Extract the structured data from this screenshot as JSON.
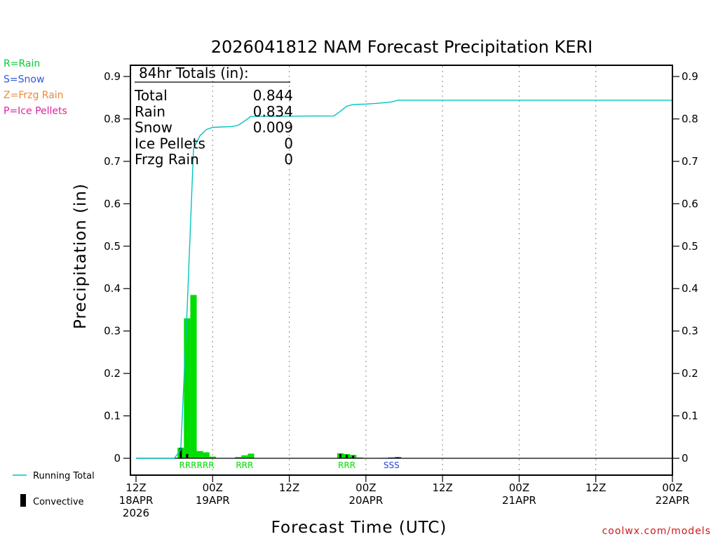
{
  "chart_data": {
    "type": "bar",
    "title": "2026041812 NAM Forecast Precipitation KERI",
    "xlabel": "Forecast Time (UTC)",
    "ylabel": "Precipitation (in)",
    "ylim": [
      0,
      0.9
    ],
    "yticks": [
      0,
      0.1,
      0.2,
      0.3,
      0.4,
      0.5,
      0.6,
      0.7,
      0.8,
      0.9
    ],
    "ytick_labels": [
      "0",
      "0.1",
      "0.2",
      "0.3",
      "0.4",
      "0.5",
      "0.6",
      "0.7",
      "0.8",
      "0.9"
    ],
    "xlim_hours": [
      0,
      84
    ],
    "xticks": [
      {
        "hour": 0,
        "lines": [
          "12Z",
          "18APR",
          "2026"
        ]
      },
      {
        "hour": 12,
        "lines": [
          "00Z",
          "19APR"
        ]
      },
      {
        "hour": 24,
        "lines": [
          "12Z"
        ]
      },
      {
        "hour": 36,
        "lines": [
          "00Z",
          "20APR"
        ]
      },
      {
        "hour": 48,
        "lines": [
          "12Z"
        ]
      },
      {
        "hour": 60,
        "lines": [
          "00Z",
          "21APR"
        ]
      },
      {
        "hour": 72,
        "lines": [
          "12Z"
        ]
      },
      {
        "hour": 84,
        "lines": [
          "00Z",
          "22APR"
        ]
      }
    ],
    "grid": "vertical-dotted",
    "series": [
      {
        "name": "Rain",
        "color": "#00dd00",
        "points": [
          {
            "h": 7,
            "v": 0.025
          },
          {
            "h": 8,
            "v": 0.33
          },
          {
            "h": 9,
            "v": 0.385
          },
          {
            "h": 10,
            "v": 0.017
          },
          {
            "h": 11,
            "v": 0.014
          },
          {
            "h": 12,
            "v": 0.004
          },
          {
            "h": 16,
            "v": 0.003
          },
          {
            "h": 17,
            "v": 0.007
          },
          {
            "h": 18,
            "v": 0.011
          },
          {
            "h": 32,
            "v": 0.012
          },
          {
            "h": 33,
            "v": 0.01
          },
          {
            "h": 34,
            "v": 0.008
          },
          {
            "h": 35,
            "v": 0.002
          }
        ]
      },
      {
        "name": "Snow",
        "color": "#2244dd",
        "points": [
          {
            "h": 39,
            "v": 0.001
          },
          {
            "h": 40,
            "v": 0.002
          },
          {
            "h": 41,
            "v": 0.003
          }
        ]
      },
      {
        "name": "Convective",
        "color": "#000000",
        "points": [
          {
            "h": 7,
            "v": 0.025
          },
          {
            "h": 8,
            "v": 0.01
          },
          {
            "h": 32,
            "v": 0.01
          },
          {
            "h": 33,
            "v": 0.008
          },
          {
            "h": 34,
            "v": 0.006
          },
          {
            "h": 41,
            "v": 0.002
          }
        ]
      },
      {
        "name": "Running Total",
        "type": "line",
        "color": "#00c4c4",
        "points": [
          {
            "h": 0,
            "v": 0
          },
          {
            "h": 6,
            "v": 0
          },
          {
            "h": 7,
            "v": 0.02
          },
          {
            "h": 8,
            "v": 0.35
          },
          {
            "h": 9,
            "v": 0.73
          },
          {
            "h": 10,
            "v": 0.76
          },
          {
            "h": 11,
            "v": 0.775
          },
          {
            "h": 12,
            "v": 0.78
          },
          {
            "h": 15,
            "v": 0.782
          },
          {
            "h": 16,
            "v": 0.785
          },
          {
            "h": 17,
            "v": 0.795
          },
          {
            "h": 18,
            "v": 0.806
          },
          {
            "h": 31,
            "v": 0.807
          },
          {
            "h": 32,
            "v": 0.818
          },
          {
            "h": 33,
            "v": 0.83
          },
          {
            "h": 34,
            "v": 0.834
          },
          {
            "h": 36,
            "v": 0.835
          },
          {
            "h": 38,
            "v": 0.837
          },
          {
            "h": 40,
            "v": 0.84
          },
          {
            "h": 41,
            "v": 0.844
          },
          {
            "h": 84,
            "v": 0.844
          }
        ]
      }
    ],
    "type_codes": [
      {
        "hour_start": 7,
        "hour_end": 12,
        "text": "RRRRRR",
        "color": "#00dd00"
      },
      {
        "hour_start": 16,
        "hour_end": 18,
        "text": "RRR",
        "color": "#00dd00"
      },
      {
        "hour_start": 32,
        "hour_end": 34,
        "text": "RRR",
        "color": "#00dd00"
      },
      {
        "hour_start": 39,
        "hour_end": 41,
        "text": "SSS",
        "color": "#2244dd"
      }
    ]
  },
  "precip_key": [
    {
      "text": "R=Rain",
      "color": "#00cc33"
    },
    {
      "text": "S=Snow",
      "color": "#3355dd"
    },
    {
      "text": "Z=Frzg Rain",
      "color": "#ee8833"
    },
    {
      "text": "P=Ice Pellets",
      "color": "#dd2299"
    }
  ],
  "totals": {
    "header": "84hr Totals (in):",
    "rows": [
      {
        "label": "Total",
        "value": "0.844"
      },
      {
        "label": "Rain",
        "value": "0.834"
      },
      {
        "label": "Snow",
        "value": "0.009"
      },
      {
        "label": "Ice Pellets",
        "value": "0"
      },
      {
        "label": "Frzg Rain",
        "value": "0"
      }
    ]
  },
  "legend": {
    "running_total": "Running Total",
    "convective": "Convective"
  },
  "credit": "coolwx.com/models"
}
